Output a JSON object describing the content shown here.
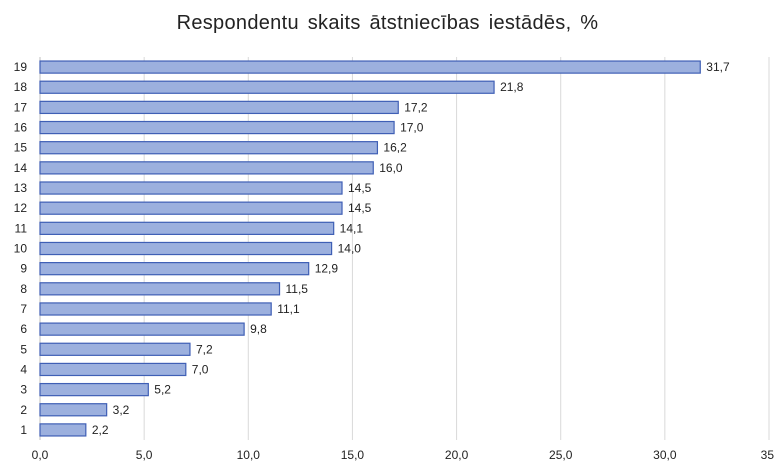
{
  "chart_data": {
    "type": "bar",
    "orientation": "horizontal",
    "title": "Respondentu  skaits  ātstniecības  iestādēs,  %",
    "categories": [
      "1",
      "2",
      "3",
      "4",
      "5",
      "6",
      "7",
      "8",
      "9",
      "10",
      "11",
      "12",
      "13",
      "14",
      "15",
      "16",
      "17",
      "18",
      "19"
    ],
    "values": [
      2.2,
      3.2,
      5.2,
      7.0,
      7.2,
      9.8,
      11.1,
      11.5,
      12.9,
      14.0,
      14.1,
      14.5,
      14.5,
      16.0,
      16.2,
      17.0,
      17.2,
      21.8,
      31.7
    ],
    "value_labels": [
      "2,2",
      "3,2",
      "5,2",
      "7,0",
      "7,2",
      "9,8",
      "11,1",
      "11,5",
      "12,9",
      "14,0",
      "14,1",
      "14,5",
      "14,5",
      "16,0",
      "16,2",
      "17,0",
      "17,2",
      "21,8",
      "31,7"
    ],
    "xlim": [
      0,
      35
    ],
    "x_ticks": [
      0,
      5,
      10,
      15,
      20,
      25,
      30,
      35
    ],
    "x_tick_labels": [
      "0,0",
      "5,0",
      "10,0",
      "15,0",
      "20,0",
      "25,0",
      "30,0",
      "35,"
    ],
    "xlabel": "",
    "ylabel": "",
    "grid": "vertical",
    "legend": "none",
    "bar_fill": "#9cb0de",
    "bar_stroke": "#3f5fb5",
    "grid_color": "#d9d9d9"
  }
}
